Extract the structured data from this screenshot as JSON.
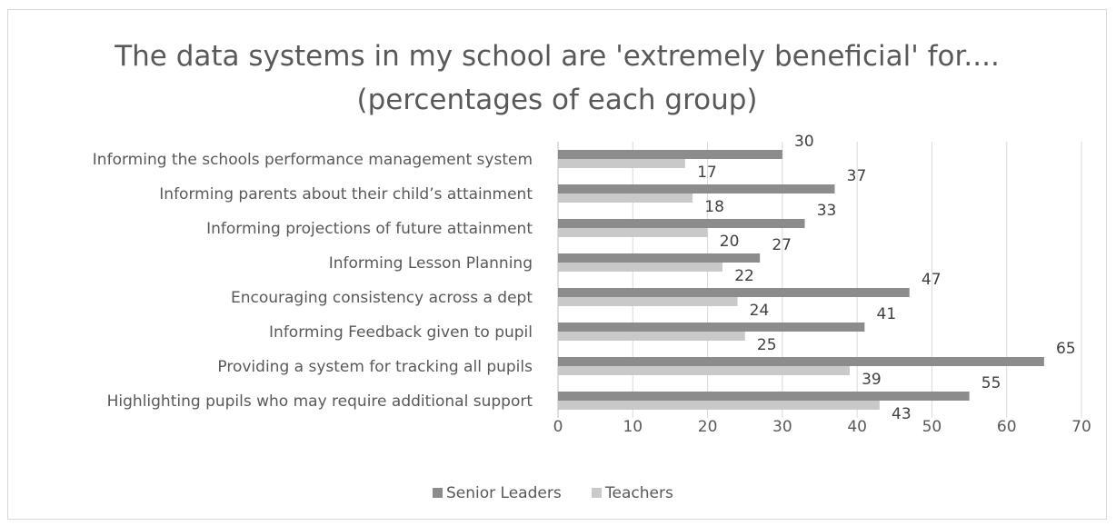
{
  "chart_data": {
    "type": "bar",
    "orientation": "horizontal",
    "title": "The data systems in my school are 'extremely beneficial' for....",
    "subtitle": "(percentages of each group)",
    "xlabel": "",
    "ylabel": "",
    "xlim": [
      0,
      70
    ],
    "xticks": [
      0,
      10,
      20,
      30,
      40,
      50,
      60,
      70
    ],
    "grid": true,
    "legend_position": "bottom",
    "categories": [
      "Informing the schools performance management system",
      "Informing parents about their child’s attainment",
      "Informing projections of future attainment",
      "Informing Lesson Planning",
      "Encouraging consistency across a dept",
      "Informing Feedback given to pupil",
      "Providing a system for tracking all pupils",
      "Highlighting pupils who may require additional support"
    ],
    "series": [
      {
        "name": "Senior Leaders",
        "color": "#8c8c8c",
        "values": [
          30,
          37,
          33,
          27,
          47,
          41,
          65,
          55
        ]
      },
      {
        "name": "Teachers",
        "color": "#c9c9c9",
        "values": [
          17,
          18,
          20,
          22,
          24,
          25,
          39,
          43
        ]
      }
    ]
  }
}
